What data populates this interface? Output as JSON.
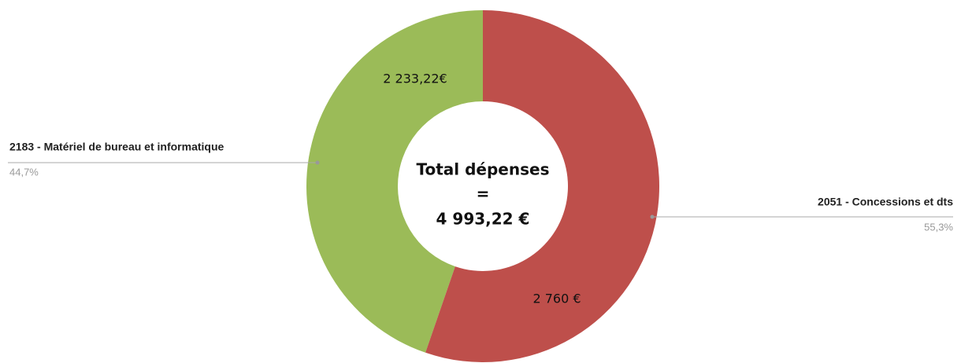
{
  "chart_data": {
    "type": "donut",
    "categories": [
      "2051 - Concessions et dts",
      "2183 - Matériel de bureau et informatique"
    ],
    "values": [
      2760,
      2233.22
    ],
    "value_labels": [
      "2 760 €",
      "2 233,22€"
    ],
    "percentages": [
      55.3,
      44.7
    ],
    "percentage_labels": [
      "55,3%",
      "44,7%"
    ],
    "colors": [
      "#be4f4b",
      "#9bbb58"
    ],
    "center_title": "Total dépenses",
    "center_sign": "=",
    "total": 4993.22,
    "total_label": "4 993,22 €"
  }
}
